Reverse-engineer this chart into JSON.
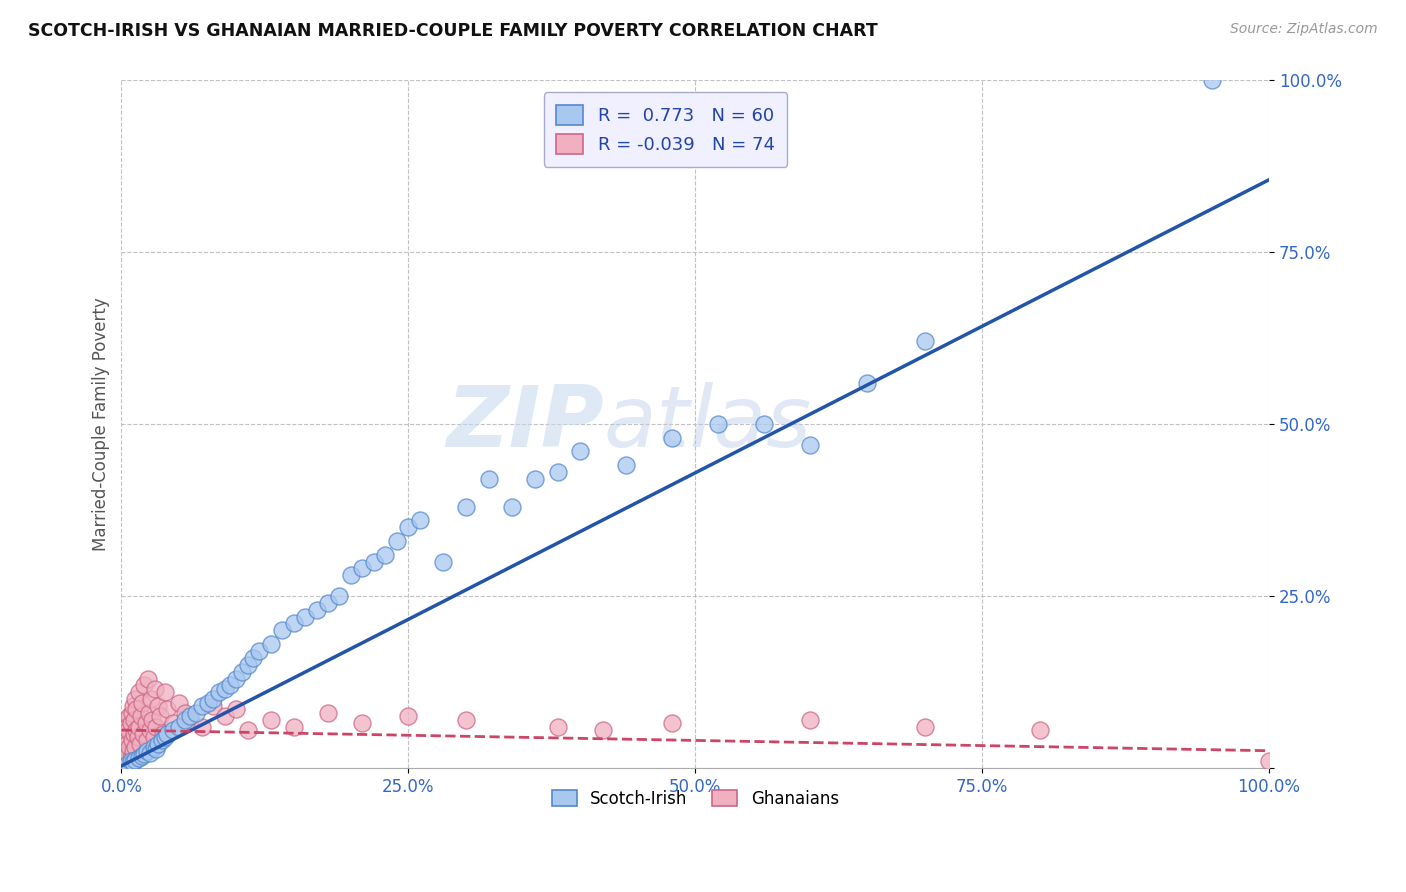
{
  "title": "SCOTCH-IRISH VS GHANAIAN MARRIED-COUPLE FAMILY POVERTY CORRELATION CHART",
  "source": "Source: ZipAtlas.com",
  "ylabel": "Married-Couple Family Poverty",
  "xlabel": "",
  "xlim": [
    0,
    1.0
  ],
  "ylim": [
    0,
    1.0
  ],
  "xticks": [
    0.0,
    0.25,
    0.5,
    0.75,
    1.0
  ],
  "yticks": [
    0.0,
    0.25,
    0.5,
    0.75,
    1.0
  ],
  "xticklabels": [
    "0.0%",
    "25.0%",
    "50.0%",
    "75.0%",
    "100.0%"
  ],
  "yticklabels": [
    "",
    "25.0%",
    "50.0%",
    "75.0%",
    "100.0%"
  ],
  "scotch_irish_color": "#a8c8f0",
  "scotch_irish_edge": "#5588cc",
  "ghanaian_color": "#f0b0c0",
  "ghanaian_edge": "#cc6688",
  "trend_scotch_color": "#2255aa",
  "trend_ghana_color": "#cc4466",
  "R_scotch": 0.773,
  "N_scotch": 60,
  "R_ghana": -0.039,
  "N_ghana": 74,
  "watermark_zip": "ZIP",
  "watermark_atlas": "atlas",
  "background_color": "#ffffff",
  "grid_color": "#bbbbbb",
  "legend_box_color": "#f0f0ff",
  "legend_edge_color": "#aaaacc",
  "scotch_irish_x": [
    0.005,
    0.008,
    0.01,
    0.012,
    0.015,
    0.018,
    0.02,
    0.022,
    0.025,
    0.028,
    0.03,
    0.032,
    0.035,
    0.038,
    0.04,
    0.045,
    0.05,
    0.055,
    0.06,
    0.065,
    0.07,
    0.075,
    0.08,
    0.085,
    0.09,
    0.095,
    0.1,
    0.105,
    0.11,
    0.115,
    0.12,
    0.13,
    0.14,
    0.15,
    0.16,
    0.17,
    0.18,
    0.19,
    0.2,
    0.21,
    0.22,
    0.23,
    0.24,
    0.25,
    0.26,
    0.28,
    0.3,
    0.32,
    0.34,
    0.36,
    0.38,
    0.4,
    0.44,
    0.48,
    0.52,
    0.56,
    0.6,
    0.65,
    0.7,
    0.95
  ],
  "scotch_irish_y": [
    0.005,
    0.01,
    0.008,
    0.012,
    0.015,
    0.018,
    0.02,
    0.025,
    0.022,
    0.03,
    0.028,
    0.035,
    0.04,
    0.045,
    0.05,
    0.055,
    0.06,
    0.07,
    0.075,
    0.08,
    0.09,
    0.095,
    0.1,
    0.11,
    0.115,
    0.12,
    0.13,
    0.14,
    0.15,
    0.16,
    0.17,
    0.18,
    0.2,
    0.21,
    0.22,
    0.23,
    0.24,
    0.25,
    0.28,
    0.29,
    0.3,
    0.31,
    0.33,
    0.35,
    0.36,
    0.3,
    0.38,
    0.42,
    0.38,
    0.42,
    0.43,
    0.46,
    0.44,
    0.48,
    0.5,
    0.5,
    0.47,
    0.56,
    0.62,
    1.0
  ],
  "ghanaian_x": [
    0.0,
    0.001,
    0.001,
    0.002,
    0.002,
    0.003,
    0.003,
    0.003,
    0.004,
    0.004,
    0.005,
    0.005,
    0.005,
    0.006,
    0.006,
    0.007,
    0.007,
    0.008,
    0.008,
    0.009,
    0.009,
    0.01,
    0.01,
    0.011,
    0.011,
    0.012,
    0.012,
    0.013,
    0.013,
    0.014,
    0.015,
    0.015,
    0.016,
    0.017,
    0.018,
    0.019,
    0.02,
    0.021,
    0.022,
    0.023,
    0.024,
    0.025,
    0.026,
    0.027,
    0.028,
    0.029,
    0.03,
    0.032,
    0.034,
    0.036,
    0.038,
    0.04,
    0.045,
    0.05,
    0.055,
    0.06,
    0.07,
    0.08,
    0.09,
    0.1,
    0.11,
    0.13,
    0.15,
    0.18,
    0.21,
    0.25,
    0.3,
    0.38,
    0.42,
    0.48,
    0.6,
    0.7,
    0.8,
    1.0
  ],
  "ghanaian_y": [
    0.005,
    0.02,
    0.04,
    0.01,
    0.03,
    0.015,
    0.05,
    0.07,
    0.025,
    0.045,
    0.01,
    0.035,
    0.06,
    0.02,
    0.055,
    0.03,
    0.075,
    0.015,
    0.065,
    0.04,
    0.08,
    0.025,
    0.09,
    0.05,
    0.07,
    0.03,
    0.1,
    0.055,
    0.085,
    0.045,
    0.06,
    0.11,
    0.035,
    0.075,
    0.095,
    0.05,
    0.12,
    0.065,
    0.04,
    0.13,
    0.08,
    0.055,
    0.1,
    0.07,
    0.045,
    0.115,
    0.06,
    0.09,
    0.075,
    0.05,
    0.11,
    0.085,
    0.065,
    0.095,
    0.08,
    0.07,
    0.06,
    0.09,
    0.075,
    0.085,
    0.055,
    0.07,
    0.06,
    0.08,
    0.065,
    0.075,
    0.07,
    0.06,
    0.055,
    0.065,
    0.07,
    0.06,
    0.055,
    0.01
  ],
  "trend_si_x0": 0.0,
  "trend_si_y0": 0.003,
  "trend_si_x1": 1.0,
  "trend_si_y1": 0.855,
  "trend_gh_x0": 0.0,
  "trend_gh_y0": 0.055,
  "trend_gh_x1": 1.0,
  "trend_gh_y1": 0.025
}
